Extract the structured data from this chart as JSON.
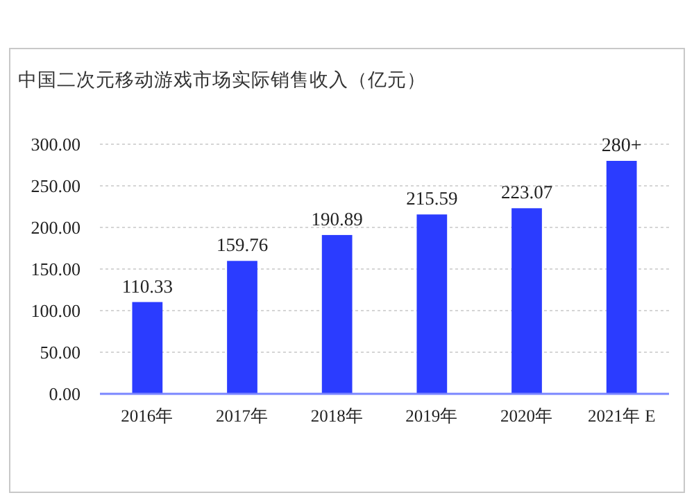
{
  "chart_data": {
    "type": "bar",
    "title": "中国二次元移动游戏市场实际销售收入（亿元）",
    "categories": [
      "2016年",
      "2017年",
      "2018年",
      "2019年",
      "2020年",
      "2021年 E"
    ],
    "values": [
      110.33,
      159.76,
      190.89,
      215.59,
      223.07,
      280
    ],
    "value_labels": [
      "110.33",
      "159.76",
      "190.89",
      "215.59",
      "223.07",
      "280+"
    ],
    "color": "#2b3cff",
    "ylim": [
      0,
      300
    ],
    "yticks": [
      {
        "value": 0,
        "label": "0.00"
      },
      {
        "value": 50,
        "label": "50.00"
      },
      {
        "value": 100,
        "label": "100.00"
      },
      {
        "value": 150,
        "label": "150.00"
      },
      {
        "value": 200,
        "label": "200.00"
      },
      {
        "value": 250,
        "label": "250.00"
      },
      {
        "value": 300,
        "label": "300.00"
      }
    ],
    "grid": "y"
  }
}
